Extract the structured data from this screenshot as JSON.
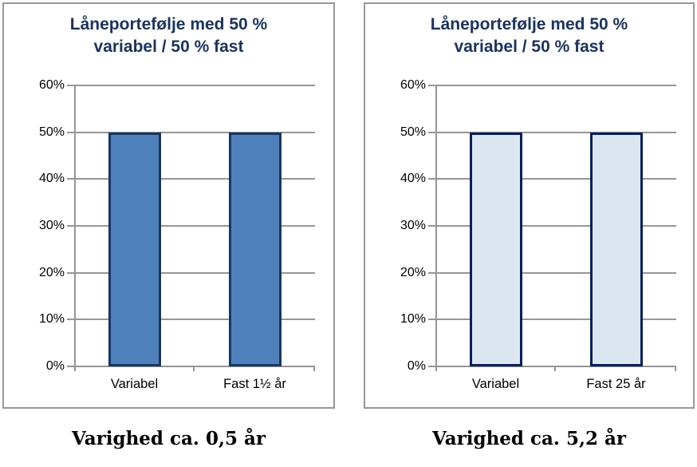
{
  "chart_data": [
    {
      "type": "bar",
      "title": "Låneportefølje med 50 % variabel / 50 % fast",
      "title_lines": [
        "Låneportefølje med 50 %",
        "variabel / 50 % fast"
      ],
      "categories": [
        "Variabel",
        "Fast 1½ år"
      ],
      "values": [
        50,
        50
      ],
      "unit": "%",
      "ylim": [
        0,
        60
      ],
      "yticks": [
        {
          "value": 0,
          "label": "0%"
        },
        {
          "value": 10,
          "label": "10%"
        },
        {
          "value": 20,
          "label": "20%"
        },
        {
          "value": 30,
          "label": "30%"
        },
        {
          "value": 40,
          "label": "40%"
        },
        {
          "value": 50,
          "label": "50%"
        },
        {
          "value": 60,
          "label": "60%"
        }
      ],
      "grid": true,
      "legend": false,
      "caption": "Varighed ca. 0,5 år",
      "colors": {
        "bar_fill": "#4f81bd",
        "bar_border": "#17375e",
        "gridline": "#969696",
        "title": "#1a3361",
        "panel_border": "#989898",
        "text": "#000000"
      }
    },
    {
      "type": "bar",
      "title": "Låneportefølje med 50 % variabel / 50 % fast",
      "title_lines": [
        "Låneportefølje med 50 %",
        "variabel / 50 % fast"
      ],
      "categories": [
        "Variabel",
        "Fast 25 år"
      ],
      "values": [
        50,
        50
      ],
      "unit": "%",
      "ylim": [
        0,
        60
      ],
      "yticks": [
        {
          "value": 0,
          "label": "0%"
        },
        {
          "value": 10,
          "label": "10%"
        },
        {
          "value": 20,
          "label": "20%"
        },
        {
          "value": 30,
          "label": "30%"
        },
        {
          "value": 40,
          "label": "40%"
        },
        {
          "value": 50,
          "label": "50%"
        },
        {
          "value": 60,
          "label": "60%"
        }
      ],
      "grid": true,
      "legend": false,
      "caption": "Varighed ca. 5,2 år",
      "colors": {
        "bar_fill": "#dce6f1",
        "bar_border": "#002060",
        "gridline": "#969696",
        "title": "#1a3361",
        "panel_border": "#989898",
        "text": "#000000"
      }
    }
  ]
}
